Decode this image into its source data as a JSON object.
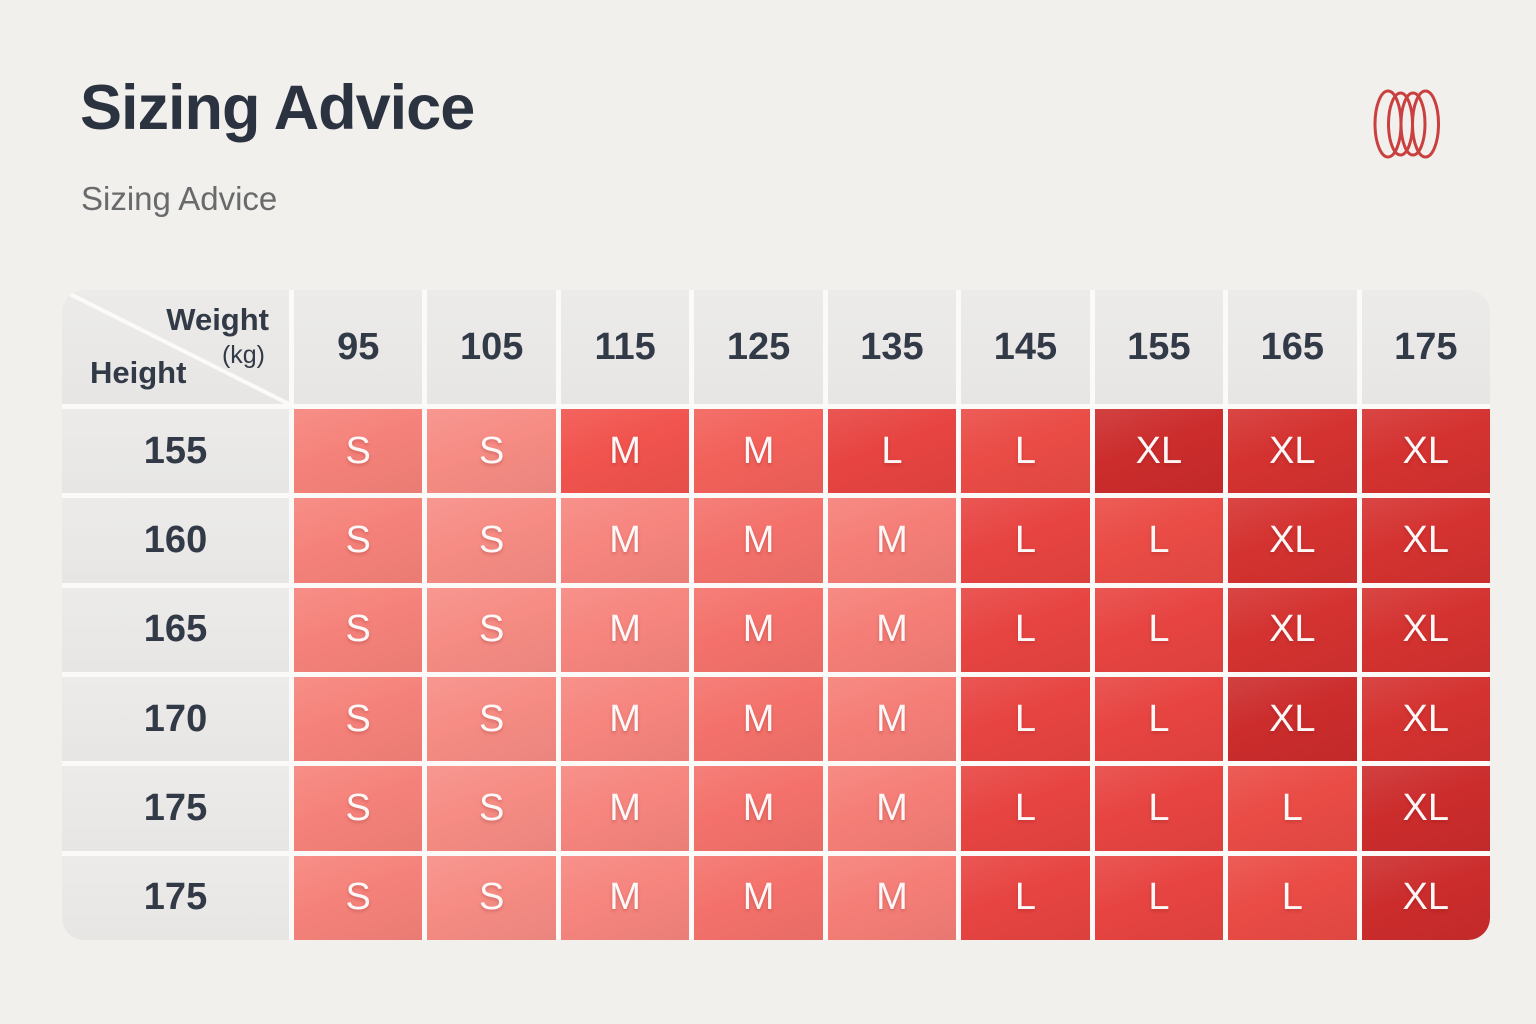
{
  "page": {
    "title": "Sizing Advice",
    "subtitle": "Sizing Advice",
    "background": "#f2f0ed"
  },
  "logo": {
    "name": "coil-rings-logo",
    "stroke": "#c9403e"
  },
  "chart_data": {
    "type": "table",
    "title": "Sizing Advice",
    "x_label": "Weight (kg)",
    "y_label": "Height",
    "columns": [
      "95",
      "105",
      "115",
      "125",
      "135",
      "145",
      "155",
      "165",
      "175"
    ],
    "rows": [
      "155",
      "160",
      "165",
      "170",
      "175",
      "175"
    ],
    "values": [
      [
        "S",
        "S",
        "M",
        "M",
        "L",
        "L",
        "XL",
        "XL",
        "XL"
      ],
      [
        "S",
        "S",
        "M",
        "M",
        "M",
        "L",
        "L",
        "XL",
        "XL"
      ],
      [
        "S",
        "S",
        "M",
        "M",
        "M",
        "L",
        "L",
        "XL",
        "XL"
      ],
      [
        "S",
        "S",
        "M",
        "M",
        "M",
        "L",
        "L",
        "XL",
        "XL"
      ],
      [
        "S",
        "S",
        "M",
        "M",
        "M",
        "L",
        "L",
        "L",
        "XL"
      ],
      [
        "S",
        "S",
        "M",
        "M",
        "M",
        "L",
        "L",
        "L",
        "XL"
      ]
    ]
  },
  "table": {
    "corner": {
      "weight_label": "Weight",
      "weight_unit": "(kg)",
      "height_label": "Height"
    },
    "header_bg": "#e9e8e6",
    "grid_line": "#fbfaf9",
    "header_text_color": "#333a47",
    "cell_text_color": "#fdf8f7",
    "palette": {
      "s1": "#F5827A",
      "s2": "#F68C84",
      "m0": "#F1534D",
      "m0b": "#F2615A",
      "m1": "#F4716B",
      "m2": "#F6857E",
      "m3": "#F57E77",
      "l1": "#E74441",
      "l2": "#EA4B45",
      "xl1": "#D43230",
      "xl2": "#CC2C2C"
    },
    "shades": [
      [
        "s1",
        "s2",
        "m0",
        "m0b",
        "l1",
        "l2",
        "xl2",
        "xl1",
        "xl1"
      ],
      [
        "s1",
        "s2",
        "m2",
        "m1",
        "m3",
        "l1",
        "l2",
        "xl1",
        "xl1"
      ],
      [
        "s1",
        "s2",
        "m2",
        "m1",
        "m3",
        "l1",
        "l1",
        "xl1",
        "xl1"
      ],
      [
        "s1",
        "s2",
        "m2",
        "m1",
        "m3",
        "l1",
        "l1",
        "xl2",
        "xl1"
      ],
      [
        "s1",
        "s2",
        "m2",
        "m1",
        "m3",
        "l1",
        "l1",
        "l2",
        "xl2"
      ],
      [
        "s1",
        "s2",
        "m2",
        "m1",
        "m3",
        "l1",
        "l1",
        "l2",
        "xl2"
      ]
    ]
  }
}
